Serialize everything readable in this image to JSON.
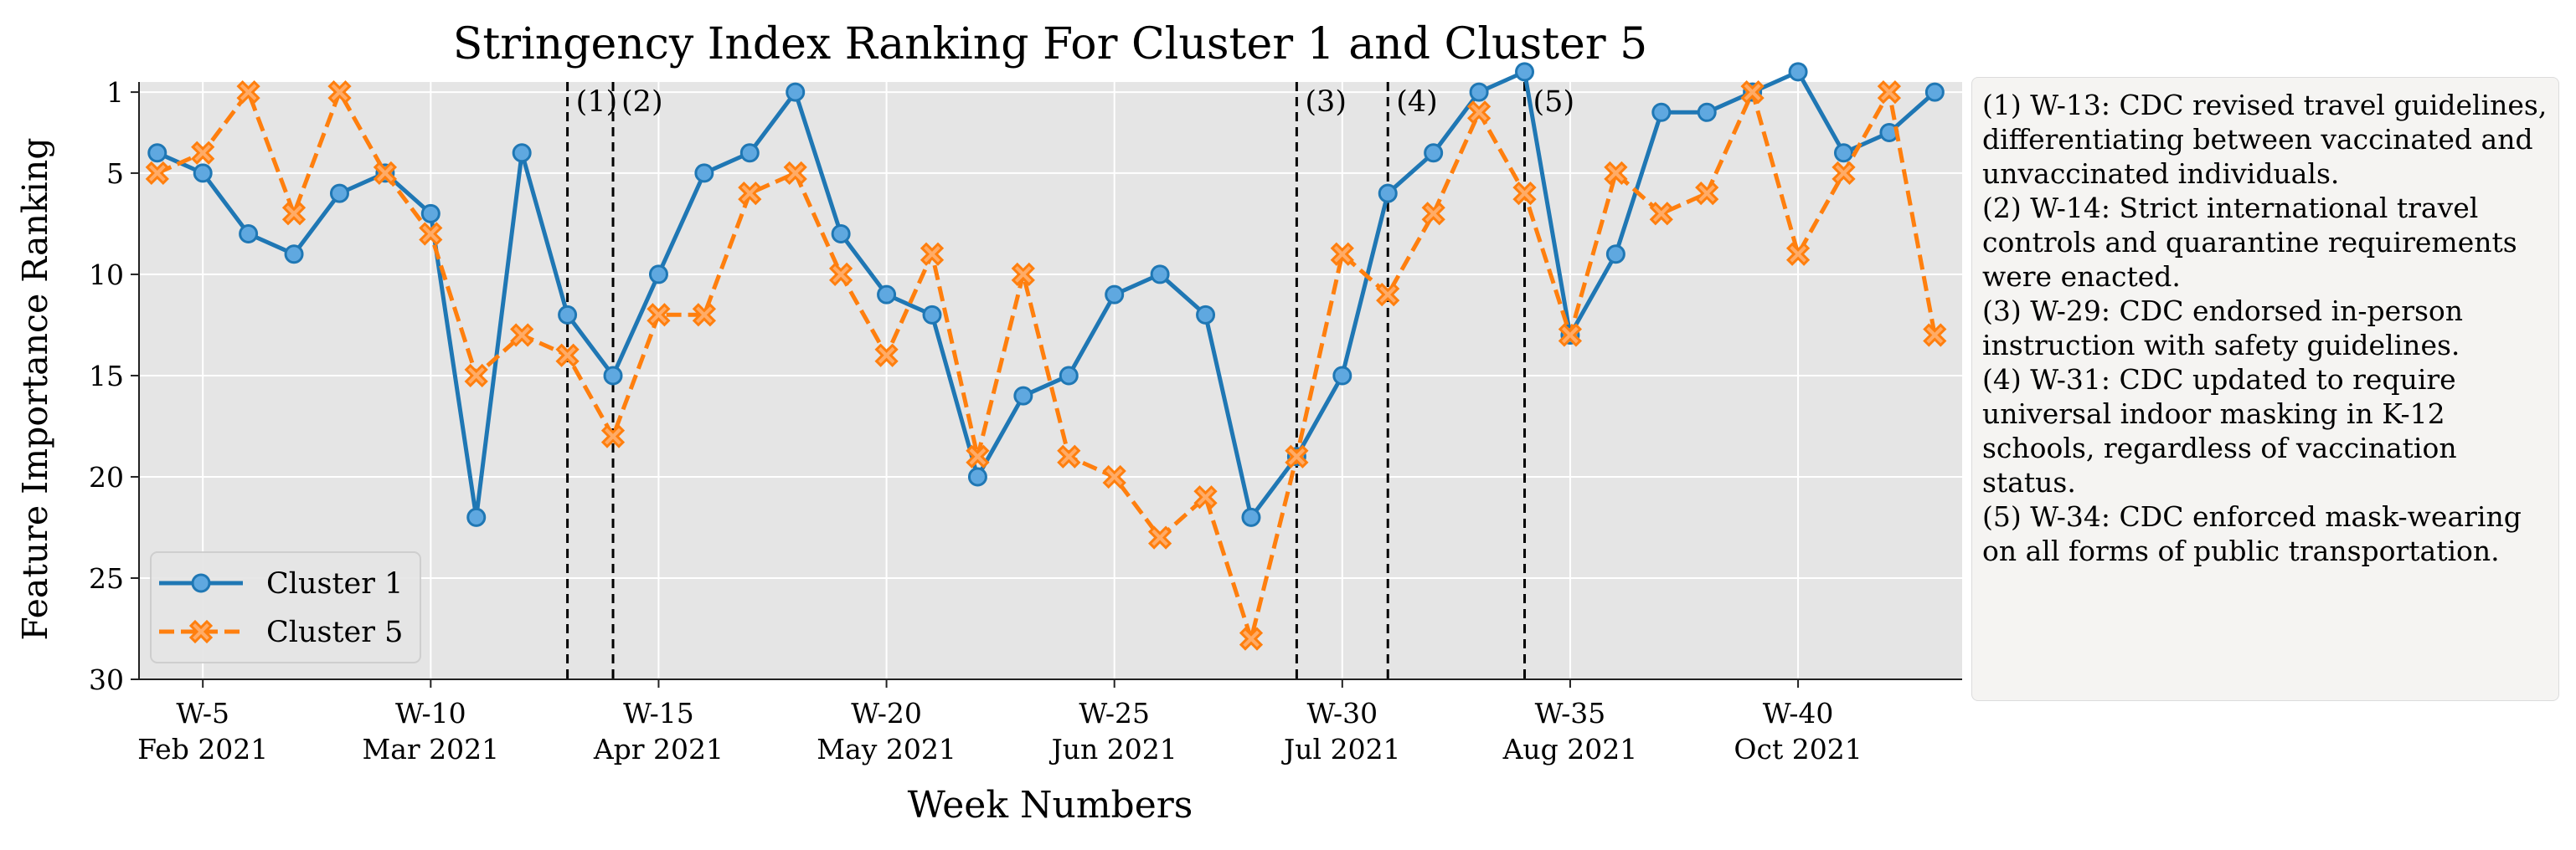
{
  "chart_data": {
    "type": "line",
    "title": "Stringency Index Ranking For Cluster 1 and Cluster 5",
    "xlabel": "Week Numbers",
    "ylabel": "Feature Importance Ranking",
    "x": [
      4,
      5,
      6,
      7,
      8,
      9,
      10,
      11,
      12,
      13,
      14,
      15,
      16,
      17,
      18,
      19,
      20,
      21,
      22,
      23,
      24,
      25,
      26,
      27,
      28,
      29,
      30,
      31,
      32,
      33,
      34,
      35,
      36,
      37,
      38,
      39,
      40,
      41,
      42,
      43
    ],
    "xlim": [
      3.6,
      43.6
    ],
    "ylim": [
      30,
      0.5
    ],
    "y_inverted": true,
    "y_ticks": [
      1,
      5,
      10,
      15,
      20,
      25,
      30
    ],
    "x_ticks": [
      {
        "week": 5,
        "label": "W-5",
        "month": "Feb 2021"
      },
      {
        "week": 10,
        "label": "W-10",
        "month": "Mar 2021"
      },
      {
        "week": 15,
        "label": "W-15",
        "month": "Apr 2021"
      },
      {
        "week": 20,
        "label": "W-20",
        "month": "May 2021"
      },
      {
        "week": 25,
        "label": "W-25",
        "month": "Jun 2021"
      },
      {
        "week": 30,
        "label": "W-30",
        "month": "Jul 2021"
      },
      {
        "week": 35,
        "label": "W-35",
        "month": "Aug 2021"
      },
      {
        "week": 40,
        "label": "W-40",
        "month": "Oct 2021"
      }
    ],
    "grid": true,
    "legend_position": "lower-left",
    "series": [
      {
        "name": "Cluster 1",
        "color": "#1f77b4",
        "marker_fill": "#5fa8e0",
        "marker": "circle",
        "linestyle": "solid",
        "values": [
          4,
          5,
          8,
          9,
          6,
          5,
          7,
          22,
          4,
          12,
          15,
          10,
          5,
          4,
          1,
          8,
          11,
          12,
          20,
          16,
          15,
          11,
          10,
          12,
          22,
          19,
          15,
          6,
          4,
          1,
          0,
          13,
          9,
          2,
          2,
          1,
          0,
          4,
          3,
          1
        ]
      },
      {
        "name": "Cluster 5",
        "color": "#ff7f0e",
        "marker_fill": "#ffab66",
        "marker": "x-filled",
        "linestyle": "dashed",
        "values": [
          5,
          4,
          1,
          7,
          1,
          5,
          8,
          15,
          13,
          14,
          18,
          12,
          12,
          6,
          5,
          10,
          14,
          9,
          19,
          10,
          19,
          20,
          23,
          21,
          28,
          19,
          9,
          11,
          7,
          2,
          6,
          13,
          5,
          7,
          6,
          1,
          9,
          5,
          1,
          13
        ]
      }
    ],
    "events": [
      {
        "week": 13,
        "label": "(1)"
      },
      {
        "week": 14,
        "label": "(2)"
      },
      {
        "week": 29,
        "label": "(3)"
      },
      {
        "week": 31,
        "label": "(4)"
      },
      {
        "week": 34,
        "label": "(5)"
      }
    ]
  },
  "notes": [
    "(1) W-13: CDC revised travel guidelines, differentiating between vaccinated and unvaccinated individuals.",
    "(2) W-14: Strict international travel controls and quarantine requirements were enacted.",
    "(3) W-29: CDC endorsed in-person instruction with safety guidelines.",
    "(4) W-31: CDC updated to require universal indoor masking in K-12 schools, regardless of vaccination status.",
    "(5) W-34: CDC enforced mask-wearing on all forms of public transportation."
  ]
}
